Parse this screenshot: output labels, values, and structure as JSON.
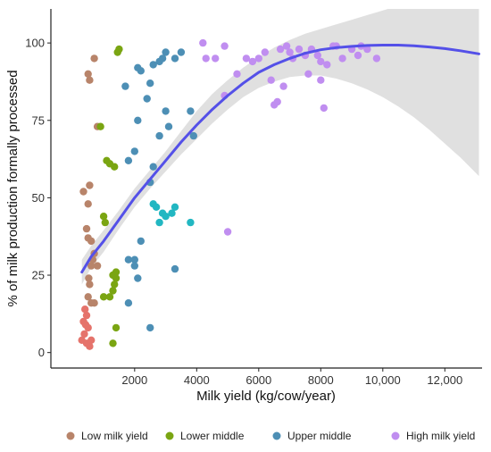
{
  "chart_data": {
    "type": "scatter",
    "title": "",
    "xlabel": "Milk yield (kg/cow/year)",
    "ylabel": "% of milk production formally processed",
    "xlim": [
      -700,
      13200
    ],
    "ylim": [
      -5,
      111
    ],
    "x_ticks": [
      2000,
      4000,
      6000,
      8000,
      10000,
      12000
    ],
    "x_tick_labels": [
      "2000",
      "4000",
      "6000",
      "8000",
      "10,000",
      "12,000"
    ],
    "y_ticks": [
      0,
      25,
      50,
      75,
      100
    ],
    "y_tick_labels": [
      "0",
      "25",
      "50",
      "75",
      "100"
    ],
    "grid": false,
    "legend_position": "bottom",
    "colors": {
      "low": "#b8846a",
      "low_red": "#e5736b",
      "lower_middle": "#7aa512",
      "upper_middle": "#4d8fb5",
      "upper_middle_teal": "#22b7c2",
      "high": "#c08ef0",
      "fit_line": "#5450e8",
      "ribbon": "#d6d6d6"
    },
    "series": [
      {
        "name": "Low milk yield",
        "key": "low",
        "points": [
          [
            300,
            4
          ],
          [
            350,
            10
          ],
          [
            380,
            6
          ],
          [
            420,
            9
          ],
          [
            450,
            3
          ],
          [
            500,
            8
          ],
          [
            550,
            2
          ],
          [
            450,
            12
          ],
          [
            600,
            4
          ],
          [
            400,
            14
          ],
          [
            500,
            18
          ],
          [
            600,
            16
          ],
          [
            700,
            16
          ],
          [
            550,
            22
          ],
          [
            520,
            24
          ],
          [
            600,
            28
          ],
          [
            650,
            30
          ],
          [
            700,
            32
          ],
          [
            800,
            28
          ],
          [
            450,
            40
          ],
          [
            350,
            52
          ],
          [
            500,
            48
          ],
          [
            550,
            54
          ],
          [
            500,
            90
          ],
          [
            550,
            88
          ],
          [
            700,
            95
          ],
          [
            800,
            73
          ],
          [
            500,
            37
          ],
          [
            600,
            36
          ]
        ]
      },
      {
        "name": "Lower middle",
        "key": "lower_middle",
        "points": [
          [
            1000,
            44
          ],
          [
            1050,
            42
          ],
          [
            1100,
            62
          ],
          [
            1200,
            61
          ],
          [
            1350,
            60
          ],
          [
            1300,
            25
          ],
          [
            1400,
            26
          ],
          [
            1400,
            24
          ],
          [
            1350,
            22
          ],
          [
            1300,
            20
          ],
          [
            1200,
            18
          ],
          [
            1000,
            18
          ],
          [
            1400,
            8
          ],
          [
            1300,
            3
          ],
          [
            1450,
            97
          ],
          [
            1500,
            98
          ],
          [
            900,
            73
          ]
        ]
      },
      {
        "name": "Upper middle",
        "key": "upper_middle",
        "points": [
          [
            1700,
            86
          ],
          [
            1800,
            62
          ],
          [
            2000,
            65
          ],
          [
            2100,
            75
          ],
          [
            2200,
            91
          ],
          [
            2100,
            92
          ],
          [
            2400,
            82
          ],
          [
            2500,
            87
          ],
          [
            2600,
            93
          ],
          [
            2800,
            94
          ],
          [
            2900,
            95
          ],
          [
            3000,
            97
          ],
          [
            3100,
            73
          ],
          [
            3300,
            95
          ],
          [
            3300,
            27
          ],
          [
            3500,
            97
          ],
          [
            3800,
            78
          ],
          [
            3900,
            70
          ],
          [
            3000,
            78
          ],
          [
            2800,
            70
          ],
          [
            2600,
            60
          ],
          [
            2500,
            55
          ],
          [
            2200,
            36
          ],
          [
            2000,
            30
          ],
          [
            2000,
            28
          ],
          [
            1800,
            30
          ],
          [
            2100,
            24
          ],
          [
            1800,
            16
          ],
          [
            2500,
            8
          ],
          [
            2700,
            47
          ],
          [
            2900,
            45
          ],
          [
            3000,
            44
          ],
          [
            3200,
            45
          ],
          [
            3300,
            47
          ],
          [
            3800,
            42
          ],
          [
            2600,
            48
          ],
          [
            2800,
            42
          ]
        ]
      },
      {
        "name": "High milk yield",
        "key": "high",
        "points": [
          [
            4200,
            100
          ],
          [
            4300,
            95
          ],
          [
            4600,
            95
          ],
          [
            4900,
            99
          ],
          [
            5000,
            39
          ],
          [
            4900,
            83
          ],
          [
            5300,
            90
          ],
          [
            5600,
            95
          ],
          [
            5800,
            94
          ],
          [
            6000,
            95
          ],
          [
            6200,
            97
          ],
          [
            6400,
            88
          ],
          [
            6500,
            80
          ],
          [
            6600,
            81
          ],
          [
            6800,
            86
          ],
          [
            6900,
            99
          ],
          [
            7000,
            97
          ],
          [
            7100,
            95
          ],
          [
            7300,
            98
          ],
          [
            7500,
            96
          ],
          [
            7600,
            90
          ],
          [
            7700,
            98
          ],
          [
            7900,
            96
          ],
          [
            8000,
            94
          ],
          [
            8200,
            93
          ],
          [
            8400,
            99
          ],
          [
            8500,
            99
          ],
          [
            8700,
            95
          ],
          [
            9000,
            98
          ],
          [
            9200,
            96
          ],
          [
            9300,
            99
          ],
          [
            9500,
            98
          ],
          [
            9800,
            95
          ],
          [
            8100,
            79
          ],
          [
            8000,
            88
          ],
          [
            6700,
            98
          ]
        ]
      }
    ],
    "trend": {
      "name": "loess fit",
      "x": [
        300,
        600,
        1000,
        1500,
        2000,
        2500,
        3000,
        3500,
        4000,
        4500,
        5000,
        5500,
        6000,
        6500,
        7000,
        7500,
        8000,
        8500,
        9000,
        9500,
        10000,
        10500,
        11000,
        11500,
        12000,
        12500,
        13100
      ],
      "y": [
        26,
        31,
        36,
        43,
        50,
        56,
        62,
        68,
        73.5,
        78.5,
        83,
        87,
        90.5,
        93,
        95,
        96.7,
        97.8,
        98.5,
        98.9,
        99.2,
        99.3,
        99.3,
        99.1,
        98.7,
        98.2,
        97.5,
        96.5
      ],
      "lower": [
        22,
        27.5,
        32.5,
        40,
        47,
        53,
        58.5,
        64,
        69,
        74,
        78.5,
        82.5,
        85.5,
        87.5,
        89,
        89.5,
        89.5,
        88.5,
        87,
        85,
        82.5,
        79.5,
        76,
        72,
        67.5,
        63,
        57
      ],
      "upper": [
        30,
        34.5,
        39.5,
        46,
        53,
        59,
        65,
        71.5,
        78,
        83.5,
        88,
        92,
        95.5,
        98.5,
        101,
        103,
        104.5,
        106,
        107.5,
        109,
        110.5,
        112,
        113.5,
        115,
        116.5,
        118,
        120
      ]
    }
  }
}
